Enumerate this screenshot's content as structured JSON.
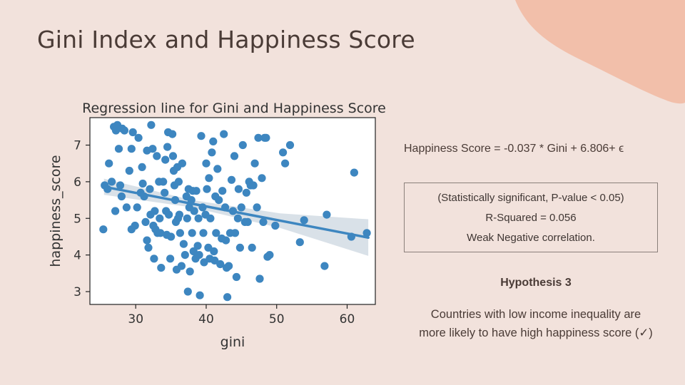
{
  "slide": {
    "title": "Gini Index and Happiness Score",
    "blob_color": "#f2bfaa"
  },
  "chart_data": {
    "type": "scatter",
    "title": "Regression line for Gini and Happiness Score",
    "xlabel": "gini",
    "ylabel": "happiness_score",
    "xlim": [
      23.5,
      64
    ],
    "ylim": [
      2.65,
      7.75
    ],
    "xticks": [
      30,
      40,
      50,
      60
    ],
    "yticks": [
      3,
      4,
      5,
      6,
      7
    ],
    "grid": false,
    "point_color": "#3d86c0",
    "line_color": "#3d86c0",
    "band_color": "#b9c9d6",
    "regression": {
      "slope": -0.037,
      "intercept": 6.806,
      "x_range": [
        25.5,
        63
      ],
      "ci_half_width": [
        0.22,
        0.1,
        0.2,
        0.5
      ]
    },
    "points": [
      [
        25.4,
        4.7
      ],
      [
        25.6,
        5.9
      ],
      [
        26.0,
        5.8
      ],
      [
        26.2,
        6.5
      ],
      [
        26.6,
        6.0
      ],
      [
        26.9,
        7.5
      ],
      [
        27.1,
        5.2
      ],
      [
        27.2,
        7.4
      ],
      [
        27.4,
        7.55
      ],
      [
        27.6,
        6.9
      ],
      [
        27.8,
        5.9
      ],
      [
        28.0,
        5.6
      ],
      [
        28.1,
        7.45
      ],
      [
        28.4,
        7.4
      ],
      [
        28.7,
        5.3
      ],
      [
        29.1,
        6.3
      ],
      [
        29.4,
        6.9
      ],
      [
        29.6,
        7.35
      ],
      [
        29.4,
        4.7
      ],
      [
        29.9,
        4.8
      ],
      [
        30.2,
        5.3
      ],
      [
        30.4,
        7.2
      ],
      [
        30.7,
        5.7
      ],
      [
        30.9,
        6.4
      ],
      [
        31.0,
        5.95
      ],
      [
        31.2,
        5.6
      ],
      [
        31.4,
        4.9
      ],
      [
        31.6,
        6.85
      ],
      [
        31.6,
        4.4
      ],
      [
        31.8,
        4.2
      ],
      [
        32.0,
        5.8
      ],
      [
        32.1,
        5.1
      ],
      [
        32.2,
        7.55
      ],
      [
        32.4,
        6.9
      ],
      [
        32.5,
        4.8
      ],
      [
        32.6,
        3.9
      ],
      [
        32.7,
        5.2
      ],
      [
        32.8,
        4.7
      ],
      [
        33.0,
        6.7
      ],
      [
        33.1,
        4.6
      ],
      [
        33.3,
        6.0
      ],
      [
        33.4,
        5.0
      ],
      [
        33.5,
        4.6
      ],
      [
        33.6,
        3.65
      ],
      [
        33.9,
        6.0
      ],
      [
        34.1,
        5.7
      ],
      [
        34.2,
        6.6
      ],
      [
        34.3,
        5.2
      ],
      [
        34.4,
        4.55
      ],
      [
        34.5,
        6.95
      ],
      [
        34.6,
        7.35
      ],
      [
        34.7,
        5.1
      ],
      [
        34.9,
        3.9
      ],
      [
        35.0,
        4.5
      ],
      [
        35.2,
        7.3
      ],
      [
        35.3,
        6.7
      ],
      [
        35.4,
        6.3
      ],
      [
        35.5,
        5.9
      ],
      [
        35.6,
        5.5
      ],
      [
        35.7,
        4.9
      ],
      [
        35.8,
        3.6
      ],
      [
        35.9,
        6.4
      ],
      [
        36.0,
        5.0
      ],
      [
        36.1,
        6.0
      ],
      [
        36.2,
        5.1
      ],
      [
        36.3,
        4.6
      ],
      [
        36.5,
        3.7
      ],
      [
        36.6,
        6.5
      ],
      [
        36.8,
        4.3
      ],
      [
        37.0,
        4.0
      ],
      [
        37.2,
        5.6
      ],
      [
        37.3,
        5.0
      ],
      [
        37.4,
        3.0
      ],
      [
        37.5,
        5.8
      ],
      [
        37.6,
        5.3
      ],
      [
        37.7,
        3.55
      ],
      [
        37.9,
        5.5
      ],
      [
        38.0,
        4.6
      ],
      [
        38.1,
        5.75
      ],
      [
        38.2,
        4.1
      ],
      [
        38.3,
        5.2
      ],
      [
        38.5,
        3.9
      ],
      [
        38.6,
        5.75
      ],
      [
        38.8,
        4.25
      ],
      [
        38.9,
        5.0
      ],
      [
        39.0,
        4.0
      ],
      [
        39.1,
        2.9
      ],
      [
        39.3,
        7.25
      ],
      [
        39.5,
        5.3
      ],
      [
        39.6,
        4.6
      ],
      [
        39.7,
        3.8
      ],
      [
        39.9,
        5.1
      ],
      [
        40.0,
        6.5
      ],
      [
        40.1,
        5.8
      ],
      [
        40.3,
        4.2
      ],
      [
        40.4,
        6.1
      ],
      [
        40.5,
        3.9
      ],
      [
        40.6,
        5.0
      ],
      [
        40.8,
        6.8
      ],
      [
        41.0,
        7.1
      ],
      [
        41.1,
        4.1
      ],
      [
        41.2,
        3.85
      ],
      [
        41.3,
        5.6
      ],
      [
        41.4,
        4.6
      ],
      [
        41.6,
        6.35
      ],
      [
        41.8,
        5.5
      ],
      [
        42.0,
        3.75
      ],
      [
        42.2,
        4.45
      ],
      [
        42.3,
        5.75
      ],
      [
        42.5,
        7.3
      ],
      [
        42.7,
        5.3
      ],
      [
        42.8,
        4.4
      ],
      [
        42.9,
        3.65
      ],
      [
        43.0,
        2.85
      ],
      [
        43.2,
        3.7
      ],
      [
        43.4,
        4.6
      ],
      [
        43.6,
        6.05
      ],
      [
        43.8,
        5.2
      ],
      [
        44.0,
        6.7
      ],
      [
        44.1,
        4.6
      ],
      [
        44.3,
        3.4
      ],
      [
        44.5,
        5.0
      ],
      [
        44.6,
        5.8
      ],
      [
        44.8,
        4.2
      ],
      [
        45.0,
        5.3
      ],
      [
        45.2,
        7.0
      ],
      [
        45.5,
        4.9
      ],
      [
        45.7,
        5.7
      ],
      [
        45.9,
        4.9
      ],
      [
        46.1,
        6.0
      ],
      [
        46.3,
        5.9
      ],
      [
        46.5,
        4.2
      ],
      [
        46.7,
        5.9
      ],
      [
        46.9,
        6.5
      ],
      [
        47.2,
        5.3
      ],
      [
        47.4,
        7.2
      ],
      [
        47.6,
        3.35
      ],
      [
        47.9,
        6.1
      ],
      [
        48.1,
        4.9
      ],
      [
        48.3,
        7.2
      ],
      [
        48.5,
        7.2
      ],
      [
        48.7,
        3.95
      ],
      [
        49.0,
        4.0
      ],
      [
        49.8,
        4.8
      ],
      [
        50.9,
        6.8
      ],
      [
        51.2,
        6.5
      ],
      [
        51.9,
        7.0
      ],
      [
        53.3,
        4.35
      ],
      [
        53.9,
        4.95
      ],
      [
        56.8,
        3.7
      ],
      [
        57.1,
        5.1
      ],
      [
        60.6,
        4.5
      ],
      [
        61.0,
        6.25
      ],
      [
        62.8,
        4.6
      ]
    ]
  },
  "equation": "Happiness Score = -0.037 * Gini + 6.806+ ϵ",
  "results": {
    "significance": "(Statistically significant, P-value < 0.05)",
    "r_squared": "R-Squared = 0.056",
    "correlation": "Weak Negative correlation."
  },
  "hypothesis": {
    "title": "Hypothesis 3",
    "line1": "Countries with low income inequality are",
    "line2": "more likely to have high happiness score (✓)"
  }
}
